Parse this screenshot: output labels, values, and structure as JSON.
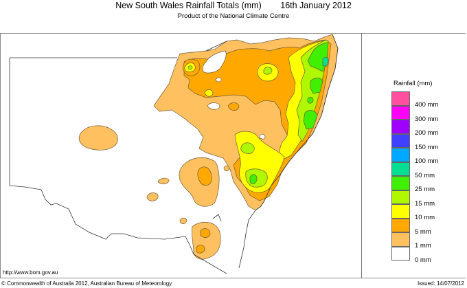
{
  "header": {
    "title": "New South Wales Rainfall Totals (mm)",
    "date": "16th January 2012",
    "subtitle": "Product of the National Climate Centre"
  },
  "legend": {
    "title": "Rainfall (mm)",
    "items": [
      {
        "label": "400 mm",
        "color": "#ff4f9e"
      },
      {
        "label": "300 mm",
        "color": "#ff00ff"
      },
      {
        "label": "200 mm",
        "color": "#a000ff"
      },
      {
        "label": "150 mm",
        "color": "#4040ff"
      },
      {
        "label": "100 mm",
        "color": "#00a8ff"
      },
      {
        "label": "50 mm",
        "color": "#00e090"
      },
      {
        "label": "25 mm",
        "color": "#40f000"
      },
      {
        "label": "15 mm",
        "color": "#b0f800"
      },
      {
        "label": "10 mm",
        "color": "#ffff00"
      },
      {
        "label": "5 mm",
        "color": "#ffa800"
      },
      {
        "label": "1 mm",
        "color": "#ffc060"
      },
      {
        "label": "0 mm",
        "color": "#ffffff"
      }
    ]
  },
  "footer": {
    "url": "http://www.bom.gov.au",
    "copyright": "© Commonwealth of Australia 2012, Australian Bureau of Meteorology",
    "issued": "Issued: 14/07/2012"
  },
  "map": {
    "region": "New South Wales",
    "colors": {
      "r1": "#ffc060",
      "r5": "#ffa800",
      "r10": "#ffff00",
      "r15": "#b0f800",
      "r25": "#40f000",
      "r50": "#00e090"
    }
  }
}
